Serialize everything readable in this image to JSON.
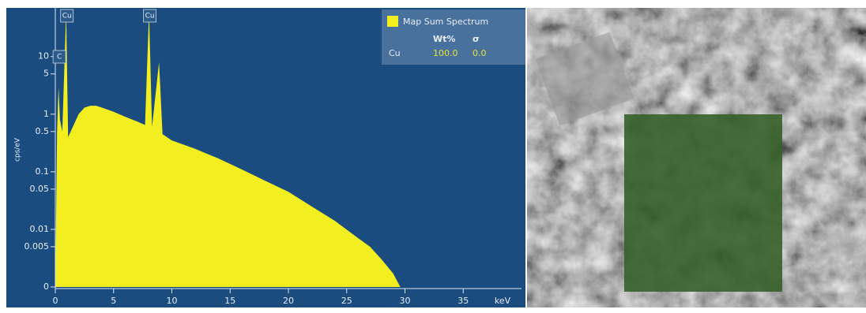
{
  "chart_data": {
    "type": "area",
    "ylabel": "cps/eV",
    "xlabel": "keV",
    "log_y": true,
    "xlim": [
      0,
      40
    ],
    "xticks": [
      0,
      5,
      10,
      15,
      20,
      25,
      30,
      35
    ],
    "ylim": [
      0.001,
      70
    ],
    "yticks": [
      {
        "value": 0.001,
        "label": "0"
      },
      0.005,
      0.01,
      0.05,
      0.1,
      0.5,
      1,
      5,
      10
    ],
    "x": [
      0,
      0.15,
      0.28,
      0.4,
      0.6,
      0.93,
      1.1,
      1.5,
      2,
      2.5,
      3,
      3.5,
      4,
      5,
      6,
      7,
      7.7,
      8.04,
      8.3,
      8.9,
      9.2,
      10,
      12,
      14,
      16,
      18,
      20,
      22,
      24,
      26,
      27,
      28,
      29,
      29.6
    ],
    "series": [
      {
        "name": "Map Sum Spectrum",
        "color": "#f2ee1f",
        "values": [
          0.001,
          0.5,
          3,
          0.8,
          0.5,
          60,
          0.4,
          0.6,
          1.0,
          1.3,
          1.4,
          1.4,
          1.3,
          1.1,
          0.9,
          0.75,
          0.65,
          60,
          0.6,
          8,
          0.45,
          0.35,
          0.25,
          0.17,
          0.11,
          0.07,
          0.045,
          0.025,
          0.014,
          0.007,
          0.005,
          0.003,
          0.0017,
          0.001
        ]
      }
    ],
    "annotations": [
      {
        "text": "C",
        "x": 0.28
      },
      {
        "text": "Cu",
        "x": 0.93
      },
      {
        "text": "Cu",
        "x": 8.04
      }
    ]
  },
  "legend_table": {
    "headers": [
      "Wt%",
      "σ"
    ],
    "rows": [
      [
        "Cu",
        "100.0",
        "0.0"
      ]
    ]
  }
}
